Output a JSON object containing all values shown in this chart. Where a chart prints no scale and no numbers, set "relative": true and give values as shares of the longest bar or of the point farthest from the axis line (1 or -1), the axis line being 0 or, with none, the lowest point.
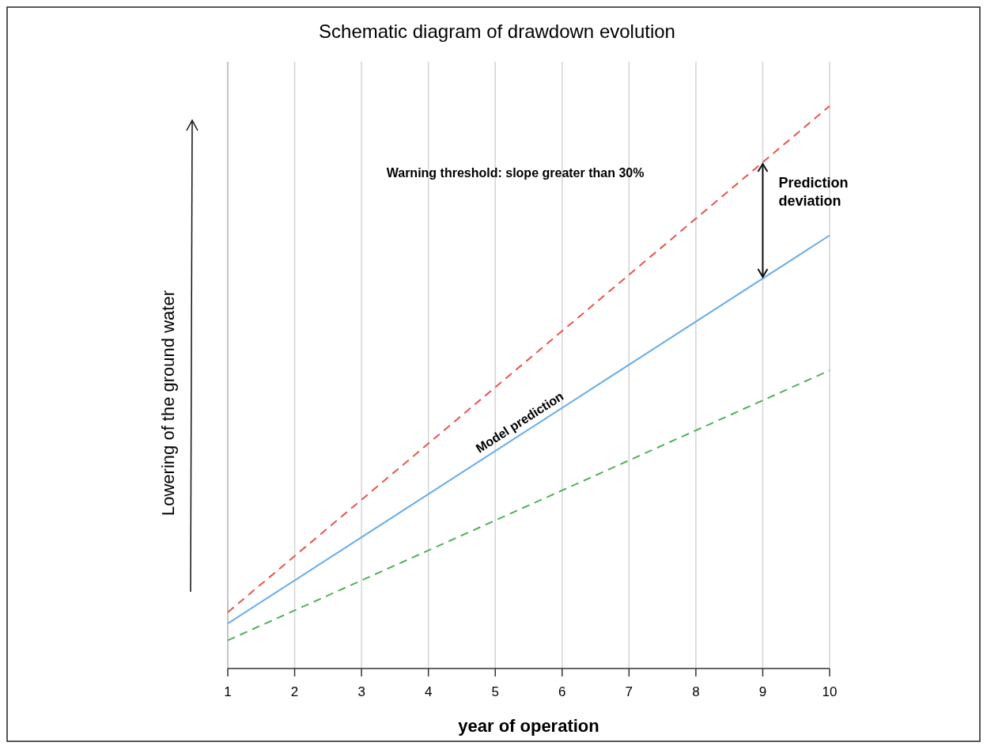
{
  "chart_data": {
    "type": "line",
    "title": "Schematic diagram of drawdown evolution",
    "xlabel": "year of operation",
    "ylabel": "Lowering of the ground water",
    "relative": true,
    "xlim": [
      1,
      10
    ],
    "xticks": [
      1,
      2,
      3,
      4,
      5,
      6,
      7,
      8,
      9,
      10
    ],
    "grid": "x",
    "x": [
      1,
      10
    ],
    "series": [
      {
        "color": "#e8534f",
        "values": [
          0.1,
          1
        ],
        "line_style": "dashed"
      },
      {
        "color": "#6aaee8",
        "values": [
          0.08,
          0.77
        ],
        "line_style": "solid"
      },
      {
        "color": "#52b05a",
        "values": [
          0.05,
          0.53
        ],
        "line_style": "dashed"
      }
    ],
    "annotations": [
      "Warning threshold: slope greater than 30%",
      "Model prediction",
      "Prediction deviation"
    ]
  }
}
